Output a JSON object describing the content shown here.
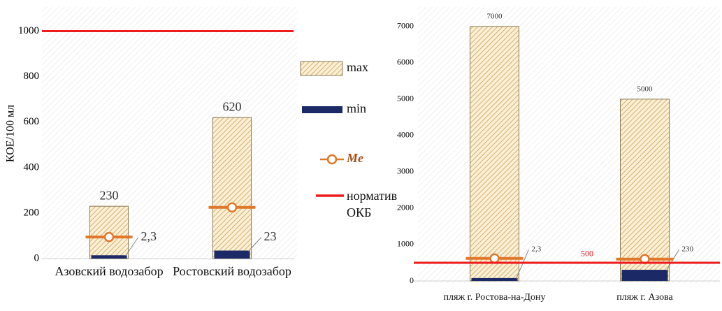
{
  "chart_data": [
    {
      "type": "bar",
      "y_label": "КОЕ/100 мл",
      "categories": [
        "Азовский водозабор",
        "Ростовский водозабор"
      ],
      "ylim": [
        0,
        1100
      ],
      "yticks": [
        0,
        200,
        400,
        600,
        800,
        1000
      ],
      "series": [
        {
          "name": "max",
          "kind": "hatched-bar",
          "color": "#c9a25a",
          "values": [
            230,
            620
          ]
        },
        {
          "name": "min",
          "kind": "thin-bar",
          "color": "#1b2a66",
          "values": [
            2.3,
            23
          ],
          "value_labels": [
            "2,3",
            "23"
          ]
        },
        {
          "name": "Me",
          "kind": "median",
          "color": "#e0782a",
          "values": [
            95,
            225
          ]
        }
      ],
      "norm": {
        "name": "норматив ОКБ",
        "value": 1000,
        "color": "#ee1c1c"
      },
      "legend": "right"
    },
    {
      "type": "bar",
      "categories": [
        "пляж г. Ростова-на-Дону",
        "пляж г. Азова"
      ],
      "ylim": [
        0,
        7400
      ],
      "yticks": [
        0,
        1000,
        2000,
        3000,
        4000,
        5000,
        6000,
        7000
      ],
      "series": [
        {
          "kind": "hatched-bar",
          "color": "#c9a25a",
          "values": [
            7000,
            5000
          ]
        },
        {
          "kind": "thin-bar",
          "color": "#1b2a66",
          "values": [
            2.3,
            230
          ],
          "value_labels": [
            "2,3",
            "230"
          ]
        },
        {
          "kind": "median",
          "color": "#e0782a",
          "values": [
            620,
            600
          ]
        }
      ],
      "norm": {
        "value": 500,
        "color": "#ee1c1c",
        "show_value": true
      }
    }
  ]
}
